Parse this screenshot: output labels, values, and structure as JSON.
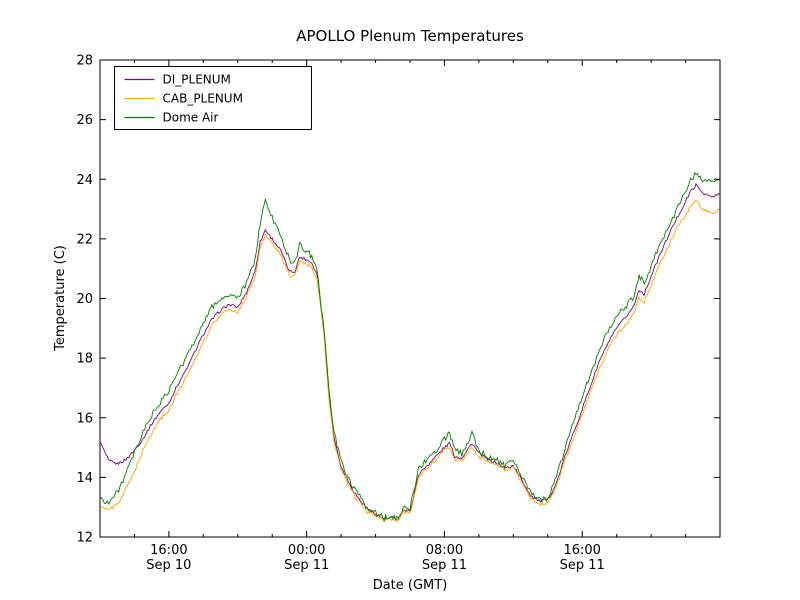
{
  "chart_data": {
    "type": "line",
    "title": "APOLLO Plenum Temperatures",
    "xlabel": "Date (GMT)",
    "ylabel": "Temperature (C)",
    "ylim": [
      12,
      28
    ],
    "yticks": [
      12,
      14,
      16,
      18,
      20,
      22,
      24,
      26,
      28
    ],
    "xlim": [
      0,
      36
    ],
    "x_unit": "hours since Sep 10 12:00 GMT",
    "xticks": [
      {
        "x": 4,
        "line1": "16:00",
        "line2": "Sep 10"
      },
      {
        "x": 12,
        "line1": "00:00",
        "line2": "Sep 11"
      },
      {
        "x": 20,
        "line1": "08:00",
        "line2": "Sep 11"
      },
      {
        "x": 28,
        "line1": "16:00",
        "line2": "Sep 11"
      }
    ],
    "minor_xtick_step": 2,
    "grid": false,
    "legend": {
      "position": "upper-left",
      "entries": [
        "DI_PLENUM",
        "CAB_PLENUM",
        "Dome Air"
      ]
    },
    "x": [
      0,
      0.5,
      1,
      1.5,
      2,
      2.5,
      3,
      3.5,
      4,
      4.5,
      5,
      5.5,
      6,
      6.5,
      7,
      7.5,
      8,
      8.5,
      9,
      9.3,
      9.6,
      10,
      10.5,
      11,
      11.3,
      11.6,
      12,
      12.3,
      12.6,
      13,
      13.3,
      13.6,
      14,
      14.5,
      15,
      15.5,
      16,
      16.5,
      17,
      17.3,
      17.6,
      18,
      18.5,
      19,
      19.5,
      20,
      20.3,
      20.6,
      21,
      21.3,
      21.6,
      22,
      22.5,
      23,
      23.5,
      24,
      24.5,
      25,
      25.5,
      26,
      26.5,
      27,
      27.5,
      28,
      28.5,
      29,
      29.5,
      30,
      30.5,
      31,
      31.3,
      31.6,
      32,
      32.5,
      33,
      33.5,
      34,
      34.3,
      34.6,
      35,
      35.5,
      36
    ],
    "series": [
      {
        "name": "DI_PLENUM",
        "color": "#800080",
        "values": [
          15.2,
          14.55,
          14.45,
          14.6,
          14.9,
          15.3,
          15.8,
          16.2,
          16.5,
          17.1,
          17.6,
          18.2,
          18.8,
          19.3,
          19.6,
          19.8,
          19.7,
          20.2,
          20.9,
          21.9,
          22.3,
          22.0,
          21.6,
          20.9,
          20.9,
          21.4,
          21.3,
          21.2,
          20.8,
          18.9,
          16.7,
          15.3,
          14.35,
          13.75,
          13.3,
          12.95,
          12.75,
          12.6,
          12.65,
          12.6,
          12.9,
          12.85,
          14.1,
          14.4,
          14.7,
          15.0,
          15.15,
          14.7,
          14.65,
          14.9,
          15.15,
          14.8,
          14.6,
          14.5,
          14.3,
          14.4,
          13.9,
          13.4,
          13.2,
          13.25,
          13.8,
          14.7,
          15.5,
          16.3,
          17.1,
          17.9,
          18.5,
          19.0,
          19.35,
          19.75,
          20.3,
          20.15,
          20.75,
          21.45,
          22.1,
          22.7,
          23.25,
          23.6,
          23.8,
          23.55,
          23.4,
          23.5
        ]
      },
      {
        "name": "CAB_PLENUM",
        "color": "#ffa500",
        "values": [
          13.0,
          12.9,
          13.1,
          13.6,
          14.2,
          14.9,
          15.5,
          15.95,
          16.25,
          16.85,
          17.35,
          17.95,
          18.55,
          19.1,
          19.45,
          19.65,
          19.55,
          20.05,
          20.75,
          21.7,
          22.15,
          21.85,
          21.45,
          20.75,
          20.75,
          21.25,
          21.15,
          21.05,
          20.65,
          18.8,
          16.55,
          15.15,
          14.25,
          13.65,
          13.2,
          12.85,
          12.7,
          12.55,
          12.6,
          12.55,
          12.85,
          12.8,
          14.0,
          14.3,
          14.6,
          14.9,
          15.0,
          14.6,
          14.55,
          14.8,
          15.0,
          14.7,
          14.5,
          14.45,
          14.25,
          14.35,
          13.8,
          13.3,
          13.1,
          13.15,
          13.7,
          14.55,
          15.35,
          16.1,
          16.9,
          17.65,
          18.3,
          18.8,
          19.1,
          19.5,
          20.0,
          19.9,
          20.45,
          21.15,
          21.75,
          22.35,
          22.8,
          23.1,
          23.3,
          23.0,
          22.85,
          23.0
        ]
      },
      {
        "name": "Dome Air",
        "color": "#008000",
        "values": [
          13.3,
          13.15,
          13.5,
          14.1,
          14.8,
          15.5,
          16.1,
          16.5,
          16.9,
          17.5,
          18.0,
          18.6,
          19.2,
          19.7,
          20.0,
          20.1,
          20.0,
          20.5,
          21.3,
          22.5,
          23.3,
          22.7,
          22.1,
          21.3,
          21.2,
          21.8,
          21.6,
          21.4,
          20.9,
          19.0,
          16.9,
          15.5,
          14.5,
          13.9,
          13.4,
          13.0,
          12.8,
          12.65,
          12.7,
          12.65,
          13.0,
          12.95,
          14.3,
          14.6,
          14.9,
          15.3,
          15.5,
          14.9,
          14.8,
          15.1,
          15.5,
          14.9,
          14.7,
          14.6,
          14.4,
          14.5,
          14.0,
          13.5,
          13.25,
          13.3,
          14.0,
          15.0,
          15.9,
          16.7,
          17.5,
          18.3,
          18.9,
          19.4,
          19.7,
          20.1,
          20.8,
          20.5,
          21.1,
          21.8,
          22.4,
          23.0,
          23.6,
          24.0,
          24.2,
          24.0,
          23.9,
          24.05
        ]
      }
    ]
  }
}
